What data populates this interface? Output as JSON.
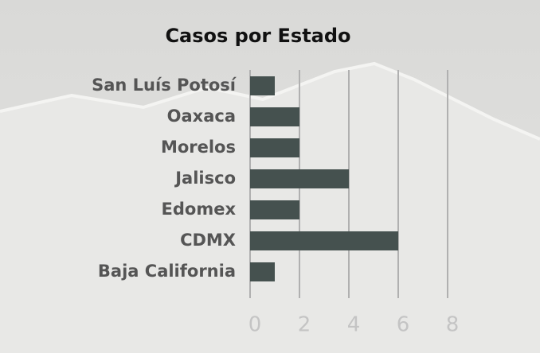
{
  "chart_data": {
    "type": "barh",
    "title": "Casos por Estado",
    "categories": [
      "San Luís Potosí",
      "Oaxaca",
      "Morelos",
      "Jalisco",
      "Edomex",
      "CDMX",
      "Baja California"
    ],
    "values": [
      1,
      2,
      2,
      4,
      2,
      6,
      1
    ],
    "color": "#45514f",
    "xlim": [
      0,
      8
    ],
    "xticks": [
      0,
      2,
      4,
      6,
      8
    ],
    "grid": true
  }
}
